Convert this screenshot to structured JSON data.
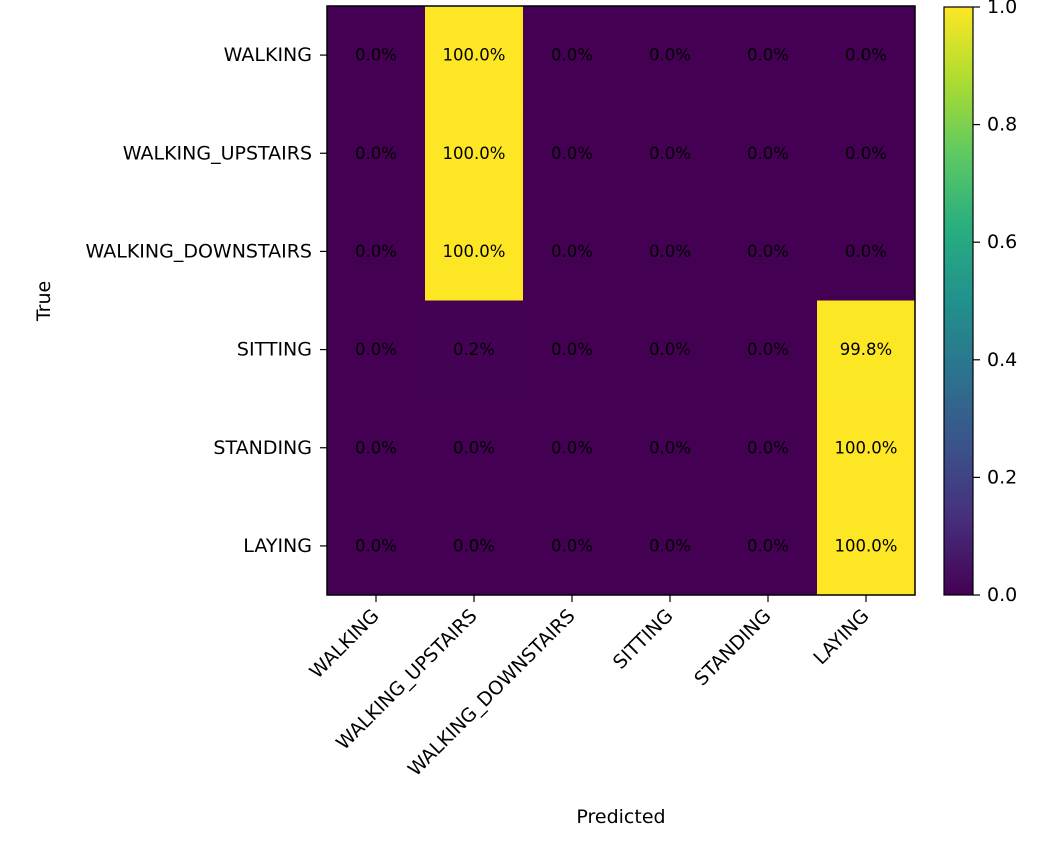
{
  "chart_data": {
    "type": "heatmap",
    "title": "",
    "xlabel": "Predicted",
    "ylabel": "True",
    "x_categories": [
      "WALKING",
      "WALKING_UPSTAIRS",
      "WALKING_DOWNSTAIRS",
      "SITTING",
      "STANDING",
      "LAYING"
    ],
    "y_categories": [
      "WALKING",
      "WALKING_UPSTAIRS",
      "WALKING_DOWNSTAIRS",
      "SITTING",
      "STANDING",
      "LAYING"
    ],
    "values": [
      [
        0.0,
        1.0,
        0.0,
        0.0,
        0.0,
        0.0
      ],
      [
        0.0,
        1.0,
        0.0,
        0.0,
        0.0,
        0.0
      ],
      [
        0.0,
        1.0,
        0.0,
        0.0,
        0.0,
        0.0
      ],
      [
        0.0,
        0.002,
        0.0,
        0.0,
        0.0,
        0.998
      ],
      [
        0.0,
        0.0,
        0.0,
        0.0,
        0.0,
        1.0
      ],
      [
        0.0,
        0.0,
        0.0,
        0.0,
        0.0,
        1.0
      ]
    ],
    "cell_labels": [
      [
        "0.0%",
        "100.0%",
        "0.0%",
        "0.0%",
        "0.0%",
        "0.0%"
      ],
      [
        "0.0%",
        "100.0%",
        "0.0%",
        "0.0%",
        "0.0%",
        "0.0%"
      ],
      [
        "0.0%",
        "100.0%",
        "0.0%",
        "0.0%",
        "0.0%",
        "0.0%"
      ],
      [
        "0.0%",
        "0.2%",
        "0.0%",
        "0.0%",
        "0.0%",
        "99.8%"
      ],
      [
        "0.0%",
        "0.0%",
        "0.0%",
        "0.0%",
        "0.0%",
        "100.0%"
      ],
      [
        "0.0%",
        "0.0%",
        "0.0%",
        "0.0%",
        "0.0%",
        "100.0%"
      ]
    ],
    "colormap": "viridis",
    "colorbar": {
      "range": [
        0.0,
        1.0
      ],
      "ticks": [
        "0.0",
        "0.2",
        "0.4",
        "0.6",
        "0.8",
        "1.0"
      ]
    }
  }
}
